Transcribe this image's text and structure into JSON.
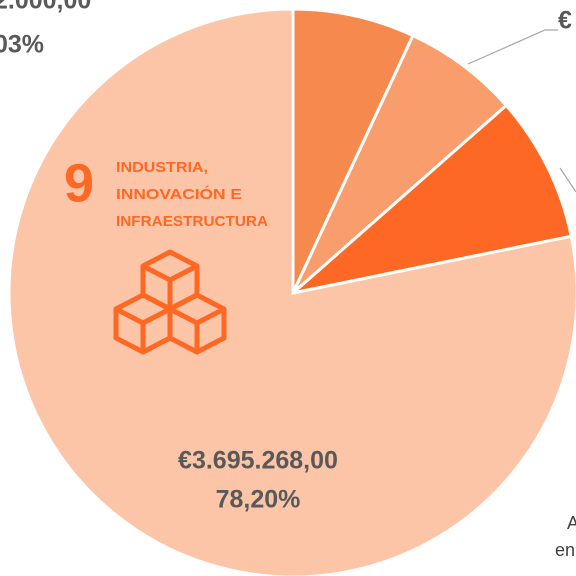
{
  "chart_data": {
    "type": "pie",
    "categories": [
      null,
      null,
      null,
      null
    ],
    "values": [
      6.94,
      6.58,
      8.28,
      78.2
    ],
    "colors": [
      "#f68a4e",
      "#f99d6c",
      "#fd6925",
      "#fdc5a8"
    ],
    "value_labels": [
      null,
      null,
      null,
      "78,20%"
    ],
    "amount_labels": [
      null,
      null,
      null,
      "€3.695.268,00"
    ],
    "annotations": [
      "2.000,00",
      "03%",
      "€",
      "A",
      "en"
    ],
    "icon": {
      "number": "9",
      "lines": [
        "INDUSTRIA,",
        "INNOVACIÓN E",
        "INFRAESTRUCTURA"
      ]
    }
  }
}
